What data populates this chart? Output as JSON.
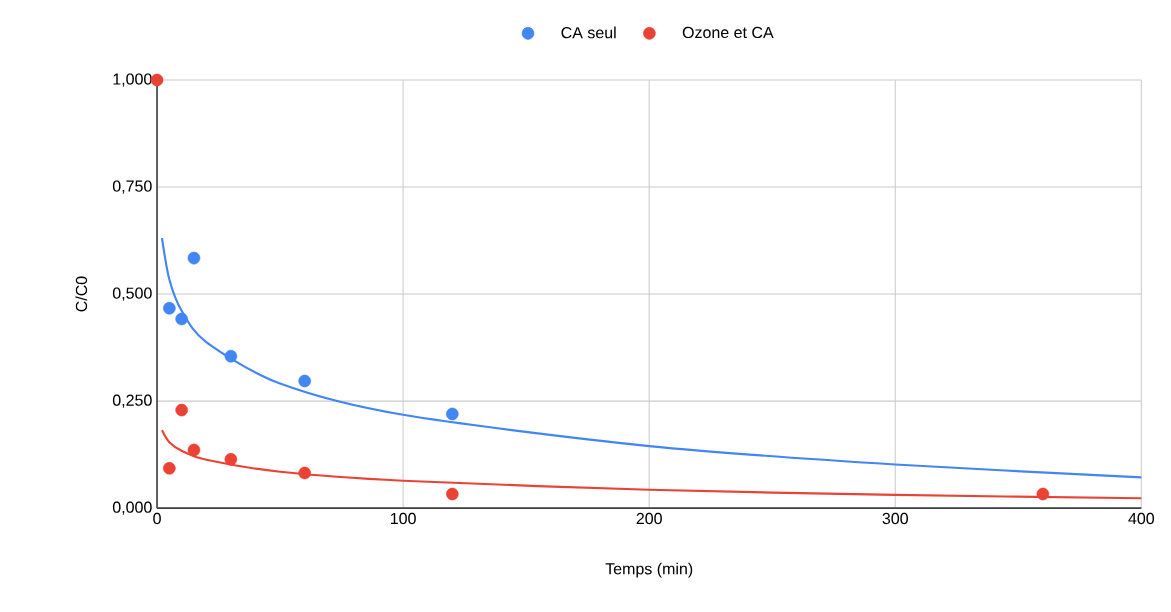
{
  "chart_data": {
    "type": "scatter",
    "xlabel": "Temps (min)",
    "ylabel": "C/C0",
    "series": [
      {
        "name": "CA seul",
        "marker": "circle",
        "color": "#4285f4",
        "x": [
          5,
          10,
          15,
          30,
          60,
          120
        ],
        "values": [
          0.467,
          0.442,
          0.584,
          0.355,
          0.297,
          0.22
        ]
      },
      {
        "name": "Ozone et CA",
        "marker": "circle",
        "color": "#ea4335",
        "x": [
          0,
          5,
          10,
          15,
          30,
          60,
          120,
          360
        ],
        "values": [
          1.0,
          0.093,
          0.229,
          0.136,
          0.114,
          0.082,
          0.033,
          0.033
        ]
      },
      {
        "type": "line",
        "marker": "none",
        "color": "#4285f4",
        "x": [
          2,
          5,
          10,
          20,
          50,
          100,
          200,
          300,
          400
        ],
        "values": [
          0.631,
          0.534,
          0.461,
          0.388,
          0.291,
          0.218,
          0.145,
          0.102,
          0.072
        ]
      },
      {
        "type": "line",
        "marker": "none",
        "color": "#ea4335",
        "x": [
          2,
          5,
          10,
          20,
          50,
          100,
          200,
          300,
          400
        ],
        "values": [
          0.182,
          0.154,
          0.134,
          0.113,
          0.085,
          0.064,
          0.043,
          0.031,
          0.023
        ]
      }
    ],
    "xlim": [
      0,
      400
    ],
    "xticks": [
      0,
      100,
      200,
      300,
      400
    ],
    "ylim": [
      0,
      1
    ],
    "yticks": [
      {
        "value": 0,
        "label": "0,000"
      },
      {
        "value": 0.25,
        "label": "0,250"
      },
      {
        "value": 0.5,
        "label": "0,500"
      },
      {
        "value": 0.75,
        "label": "0,750"
      },
      {
        "value": 1,
        "label": "1,000"
      }
    ],
    "grid": true,
    "legend": "top"
  }
}
